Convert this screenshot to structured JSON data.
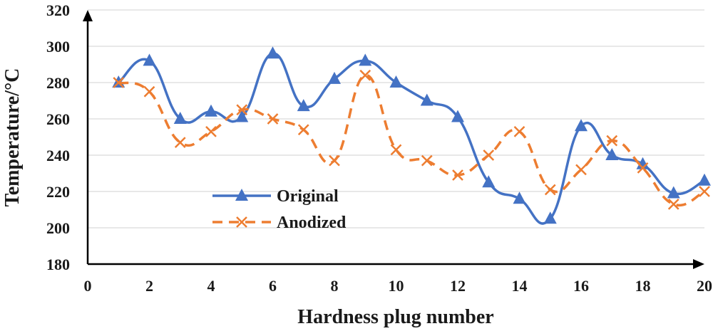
{
  "chart_data": {
    "type": "line",
    "title": "",
    "xlabel": "Hardness plug number",
    "ylabel": "Temperature/°C",
    "xlim": [
      0,
      20
    ],
    "ylim": [
      180,
      320
    ],
    "xticks": [
      0,
      2,
      4,
      6,
      8,
      10,
      12,
      14,
      16,
      18,
      20
    ],
    "yticks": [
      180,
      200,
      220,
      240,
      260,
      280,
      300,
      320
    ],
    "grid": true,
    "legend_position": "lower-left",
    "series": [
      {
        "name": "Original",
        "color": "#4472c4",
        "marker": "triangle",
        "line_style": "solid",
        "x": [
          1,
          2,
          3,
          4,
          5,
          6,
          7,
          8,
          9,
          10,
          11,
          12,
          13,
          14,
          15,
          16,
          17,
          18,
          19,
          20
        ],
        "values": [
          280,
          292,
          260,
          264,
          261,
          296,
          267,
          282,
          292,
          280,
          270,
          261,
          225,
          216,
          205,
          256,
          240,
          235,
          219,
          226
        ]
      },
      {
        "name": "Anodized",
        "color": "#ed7d31",
        "marker": "x",
        "line_style": "dashed",
        "x": [
          1,
          2,
          3,
          4,
          5,
          6,
          7,
          8,
          9,
          10,
          11,
          12,
          13,
          14,
          15,
          16,
          17,
          18,
          19,
          20
        ],
        "values": [
          280,
          275,
          247,
          253,
          265,
          260,
          254,
          237,
          284,
          243,
          237,
          229,
          240,
          253,
          221,
          232,
          248,
          233,
          213,
          220
        ]
      }
    ]
  }
}
